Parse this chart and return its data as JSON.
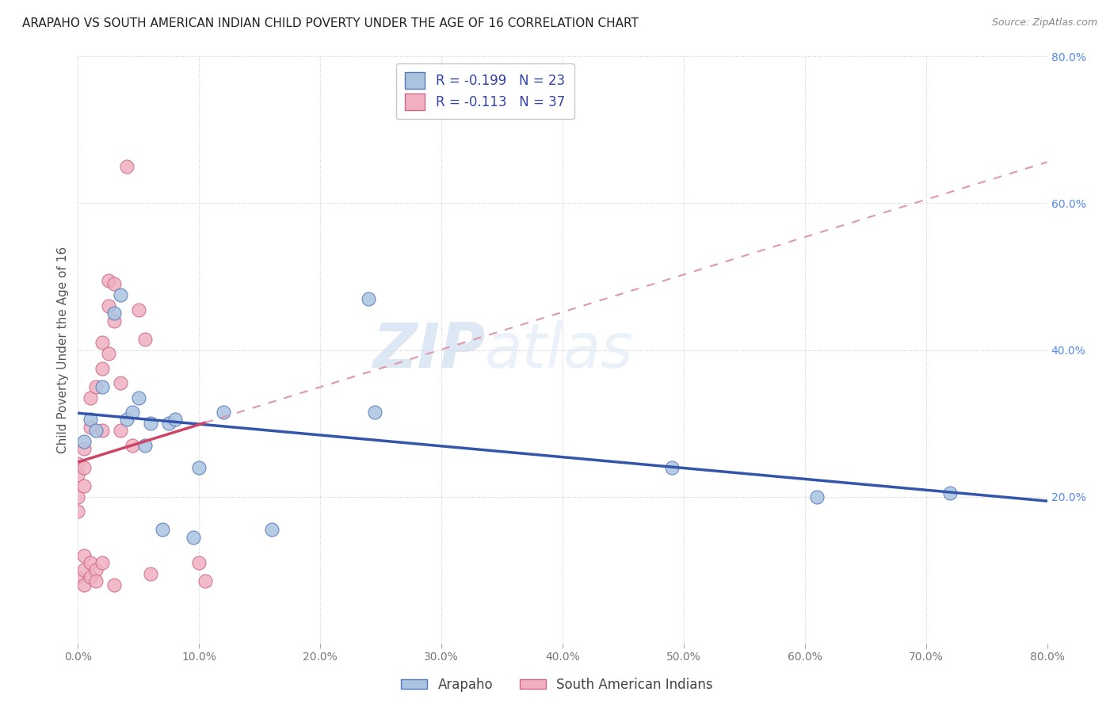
{
  "title": "ARAPAHO VS SOUTH AMERICAN INDIAN CHILD POVERTY UNDER THE AGE OF 16 CORRELATION CHART",
  "source": "Source: ZipAtlas.com",
  "ylabel": "Child Poverty Under the Age of 16",
  "xlim": [
    0.0,
    0.8
  ],
  "ylim": [
    0.0,
    0.8
  ],
  "xtick_labels": [
    "0.0%",
    "",
    "10.0%",
    "",
    "20.0%",
    "",
    "30.0%",
    "",
    "40.0%",
    "",
    "50.0%",
    "",
    "60.0%",
    "",
    "70.0%",
    "",
    "80.0%"
  ],
  "xtick_vals": [
    0.0,
    0.05,
    0.1,
    0.15,
    0.2,
    0.25,
    0.3,
    0.35,
    0.4,
    0.45,
    0.5,
    0.55,
    0.6,
    0.65,
    0.7,
    0.75,
    0.8
  ],
  "xtick_major_labels": [
    "0.0%",
    "10.0%",
    "20.0%",
    "30.0%",
    "40.0%",
    "50.0%",
    "60.0%",
    "70.0%",
    "80.0%"
  ],
  "xtick_major_vals": [
    0.0,
    0.1,
    0.2,
    0.3,
    0.4,
    0.5,
    0.6,
    0.7,
    0.8
  ],
  "ytick_labels_right": [
    "80.0%",
    "60.0%",
    "40.0%",
    "20.0%"
  ],
  "ytick_vals_right": [
    0.8,
    0.6,
    0.4,
    0.2
  ],
  "arapaho_color": "#aac4e0",
  "arapaho_edge": "#5577bb",
  "sa_color": "#f0b0c0",
  "sa_edge": "#cc6688",
  "arapaho_x": [
    0.005,
    0.01,
    0.015,
    0.02,
    0.03,
    0.035,
    0.04,
    0.045,
    0.05,
    0.055,
    0.06,
    0.07,
    0.075,
    0.08,
    0.095,
    0.1,
    0.12,
    0.16,
    0.24,
    0.245,
    0.49,
    0.61,
    0.72
  ],
  "arapaho_y": [
    0.275,
    0.305,
    0.29,
    0.35,
    0.45,
    0.475,
    0.305,
    0.315,
    0.335,
    0.27,
    0.3,
    0.155,
    0.3,
    0.305,
    0.145,
    0.24,
    0.315,
    0.155,
    0.47,
    0.315,
    0.24,
    0.2,
    0.205
  ],
  "sa_x": [
    0.0,
    0.0,
    0.0,
    0.0,
    0.0,
    0.005,
    0.005,
    0.005,
    0.005,
    0.005,
    0.005,
    0.01,
    0.01,
    0.01,
    0.01,
    0.015,
    0.015,
    0.015,
    0.02,
    0.02,
    0.02,
    0.02,
    0.025,
    0.025,
    0.025,
    0.03,
    0.03,
    0.03,
    0.035,
    0.035,
    0.04,
    0.045,
    0.05,
    0.055,
    0.06,
    0.1,
    0.105
  ],
  "sa_y": [
    0.245,
    0.23,
    0.2,
    0.18,
    0.09,
    0.265,
    0.24,
    0.215,
    0.12,
    0.1,
    0.08,
    0.335,
    0.295,
    0.11,
    0.09,
    0.35,
    0.1,
    0.085,
    0.41,
    0.375,
    0.29,
    0.11,
    0.495,
    0.46,
    0.395,
    0.49,
    0.44,
    0.08,
    0.355,
    0.29,
    0.65,
    0.27,
    0.455,
    0.415,
    0.095,
    0.11,
    0.085
  ],
  "arapaho_R": -0.199,
  "arapaho_N": 23,
  "sa_R": -0.113,
  "sa_N": 37,
  "watermark_zip": "ZIP",
  "watermark_atlas": "atlas",
  "legend_label_arapaho": "Arapaho",
  "legend_label_sa": "South American Indians",
  "marker_size": 150,
  "line_width": 2.5,
  "blue_line_color": "#3355aa",
  "pink_line_solid_color": "#cc4466",
  "pink_line_dash_color": "#dd99aa",
  "grid_color": "#cccccc",
  "background_color": "#ffffff",
  "title_fontsize": 11,
  "axis_label_fontsize": 11,
  "tick_fontsize": 10,
  "legend_fontsize": 12,
  "source_fontsize": 9
}
